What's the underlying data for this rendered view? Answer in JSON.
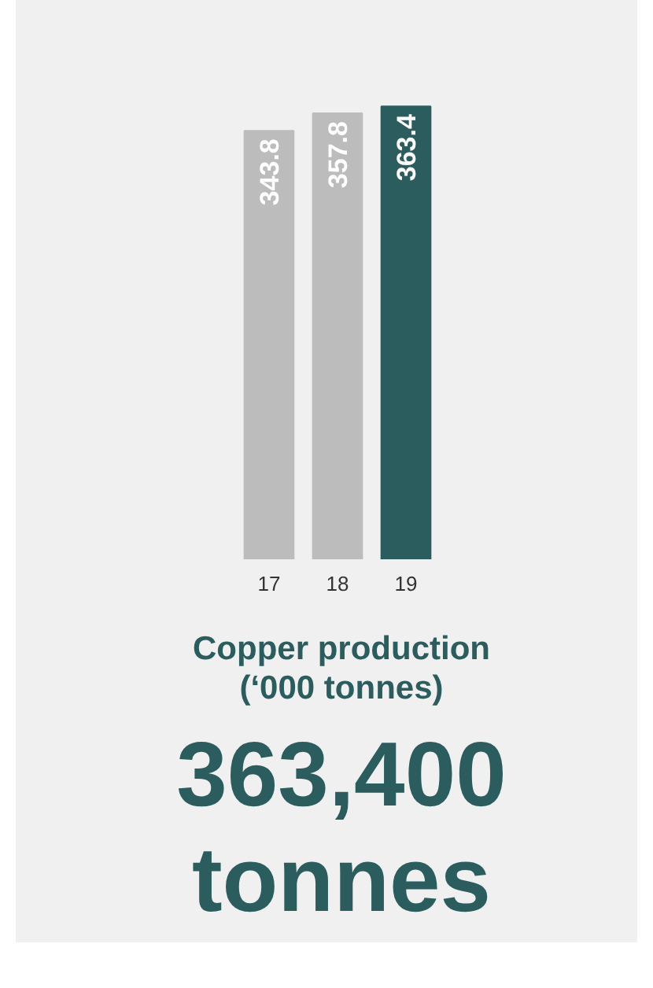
{
  "chart_data": {
    "type": "bar",
    "title": "Copper production (‘000 tonnes)",
    "categories": [
      "17",
      "18",
      "19"
    ],
    "values": [
      343.8,
      357.8,
      363.4
    ],
    "colors": [
      "#bcbcbc",
      "#bcbcbc",
      "#2b5d5e"
    ],
    "data_labels": true,
    "grid": false,
    "annotations": [
      "363,400 tonnes"
    ]
  }
}
